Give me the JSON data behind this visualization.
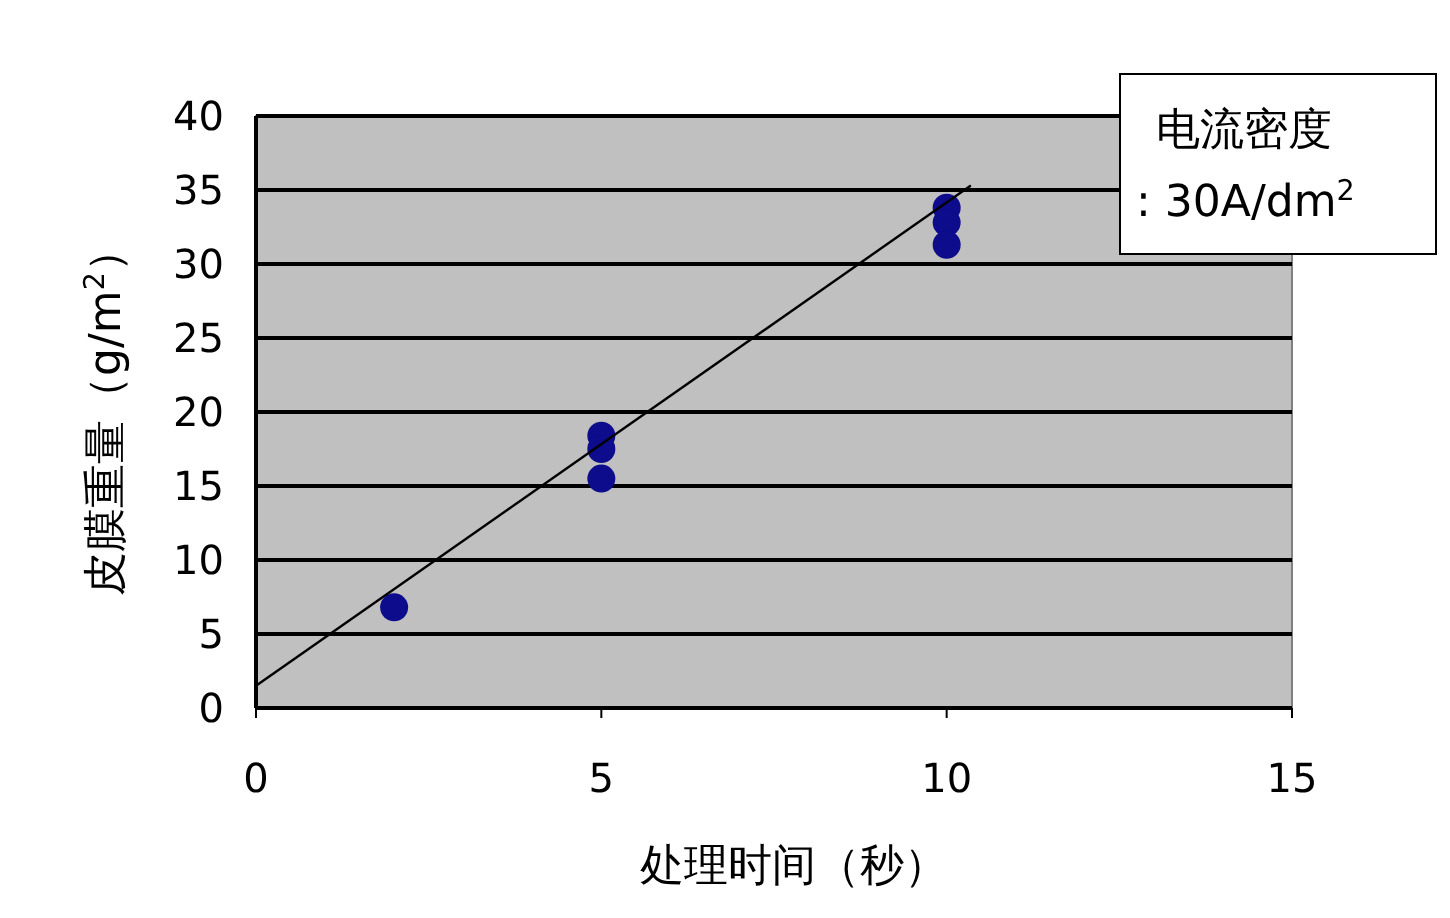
{
  "chart_data": {
    "type": "scatter",
    "xlabel": "处理时间（秒）",
    "ylabel": "皮膜重量（g/m$^{2}$）",
    "annotations": [
      "电流密度",
      ": 30A/dm$^{2}$"
    ],
    "xlim": [
      0,
      15
    ],
    "xticks": [
      0,
      5,
      10,
      15
    ],
    "ylim": [
      0,
      40
    ],
    "yticks": [
      0,
      5,
      10,
      15,
      20,
      25,
      30,
      35,
      40
    ],
    "grid": "y",
    "marker": "circle",
    "series": [
      {
        "color": "#0c0c8c",
        "x": [
          2,
          5,
          5,
          5,
          10,
          10,
          10
        ],
        "values": [
          6.8,
          18.4,
          17.5,
          15.5,
          33.8,
          32.8,
          31.3
        ]
      },
      {
        "type": "line",
        "color": "#000000",
        "marker": "none",
        "x": [
          0,
          10.35
        ],
        "values": [
          1.5,
          35.3
        ]
      }
    ]
  }
}
